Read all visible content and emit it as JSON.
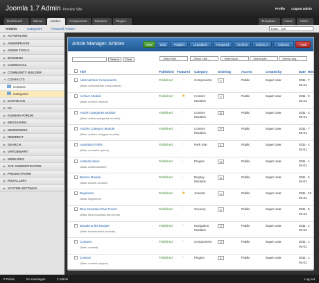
{
  "app": {
    "title": "Joomla 1.7 Admin",
    "subtitle": "Preview Site"
  },
  "topright": {
    "profile": "Profile",
    "logout": "Logout admin"
  },
  "menu_left": [
    "Dashboard",
    "Menus",
    "Articles",
    "Components",
    "Modules",
    "Plugins"
  ],
  "menu_right": [
    "Templates",
    "Users",
    "Admin"
  ],
  "submenu": {
    "links": [
      "Articles",
      "Categories",
      "Featured Articles"
    ],
    "editor": "Editor - JCE"
  },
  "sidebar": {
    "top": [
      "ACYMAILING",
      "ADMINPRAISE",
      "ADMIN TOOLS",
      "BANNERS",
      "COMSOCIAL",
      "COMMUNITY BUILDER",
      "CONTACTS"
    ],
    "sub": [
      "Contacts",
      "Categories"
    ],
    "bottom": [
      "EASYBLOG",
      "K2",
      "KUNENA FORUM",
      "MESSAGING",
      "NEWSFEEDS",
      "REDIRECT",
      "SEARCH",
      "VIRTUEMART",
      "WEBLINKS",
      "JCE ADMINISTRATION",
      "PROJECTFORK",
      "RSGALLERY",
      "SYSTEM SETTINGS"
    ]
  },
  "content": {
    "title": "Article Manager: Articles"
  },
  "toolbar": [
    "New",
    "Edit",
    "Publish",
    "Unpublish",
    "Featured",
    "Archive",
    "Check In",
    "Options",
    "Trash"
  ],
  "filters": {
    "search_button": "Search",
    "clear_button": "Clear",
    "selects": [
      "- Select Stat -",
      "- Select Cate -",
      "- Select Acce -",
      "- Select Auth -",
      "- Select Lang -"
    ]
  },
  "columns": [
    "Title",
    "Published",
    "Featured",
    "Category",
    "Ordering",
    "Access",
    "Created by",
    "Date",
    "Hits"
  ],
  "rows": [
    {
      "title": "Administrator Components",
      "alias": "(Alias: administrator-components)",
      "published": "Published",
      "featured": false,
      "category": "Components",
      "ordering": "7",
      "access": "Public",
      "author": "Super User",
      "date": "2011-01-01",
      "hits": "7"
    },
    {
      "title": "Archive Module",
      "alias": "(Alias: archive-module)",
      "published": "Published",
      "featured": true,
      "category": "Content Modules",
      "ordering": "7",
      "access": "Public",
      "author": "Super User",
      "date": "2011-01-01",
      "hits": "0"
    },
    {
      "title": "Article Categories Module",
      "alias": "(Alias: article-categories-module)",
      "published": "Published",
      "featured": false,
      "category": "Content Modules",
      "ordering": "6",
      "access": "Public",
      "author": "Super User",
      "date": "2011-01-01",
      "hits": "3"
    },
    {
      "title": "Articles Category Module",
      "alias": "(Alias: articles-category-module)",
      "published": "Published",
      "featured": false,
      "category": "Content Modules",
      "ordering": "7",
      "access": "Public",
      "author": "Super User",
      "date": "2011-01-01",
      "hits": "7"
    },
    {
      "title": "Australian Parks",
      "alias": "(Alias: australian-parks)",
      "published": "Published",
      "featured": false,
      "category": "Park Site",
      "ordering": "1",
      "access": "Public",
      "author": "Super User",
      "date": "2011-01-01",
      "hits": "4"
    },
    {
      "title": "Authentication",
      "alias": "(Alias: authentication)",
      "published": "Published",
      "featured": false,
      "category": "Plugins",
      "ordering": "3",
      "access": "Public",
      "author": "Super User",
      "date": "2011-01-01",
      "hits": "1"
    },
    {
      "title": "Banner Module",
      "alias": "(Alias: banner-module)",
      "published": "Published",
      "featured": false,
      "category": "Display Modules",
      "ordering": "6",
      "access": "Public",
      "author": "Super User",
      "date": "2011-01-01",
      "hits": "2"
    },
    {
      "title": "Beginners",
      "alias": "(Alias: beginners)",
      "published": "Published",
      "featured": true,
      "category": "Joomla!",
      "ordering": "4",
      "access": "Public",
      "author": "Super User",
      "date": "2011-01-01",
      "hits": "12"
    },
    {
      "title": "Blue Mountain Rain Forest",
      "alias": "(Alias: blue-mountain-rain-forest)",
      "published": "Published",
      "featured": false,
      "category": "Scenery",
      "ordering": "2",
      "access": "Public",
      "author": "Super User",
      "date": "2011-01-01",
      "hits": "0"
    },
    {
      "title": "Breadcrumbs Module",
      "alias": "(Alias: breadcrumbs-module)",
      "published": "Published",
      "featured": false,
      "category": "Navigation Modules",
      "ordering": "2",
      "access": "Public",
      "author": "Super User",
      "date": "2011-01-01",
      "hits": "4"
    },
    {
      "title": "Contacts",
      "alias": "(Alias: contact)",
      "published": "Published",
      "featured": false,
      "category": "Components",
      "ordering": "2",
      "access": "Public",
      "author": "Super User",
      "date": "2011-01-01",
      "hits": "1"
    },
    {
      "title": "Content",
      "alias": "(Alias: content-plugins)",
      "published": "Published",
      "featured": false,
      "category": "Plugins",
      "ordering": "1",
      "access": "Public",
      "author": "Super User",
      "date": "2011-01-01",
      "hits": "1"
    }
  ],
  "status": {
    "public": "0 Public",
    "messages": "No messages",
    "admin": "2 Admin",
    "logout": "Log out"
  }
}
